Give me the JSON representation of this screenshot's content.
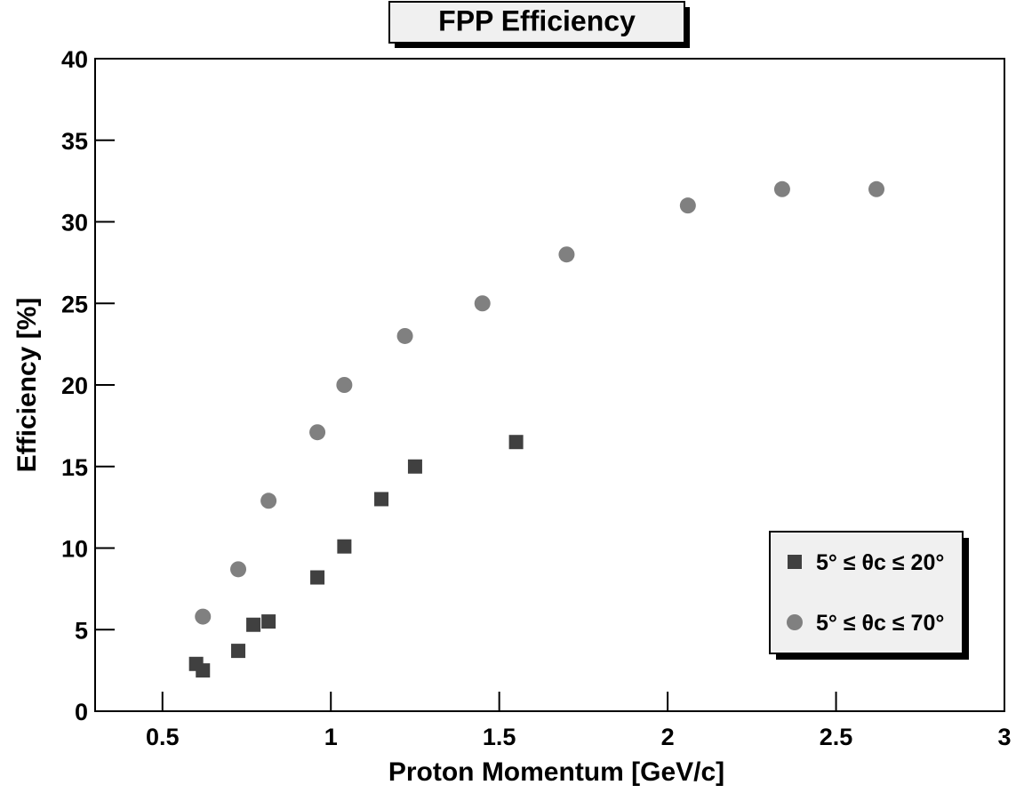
{
  "chart_data": {
    "type": "scatter",
    "title": "FPP Efficiency",
    "x_label": "Proton Momentum   [GeV/c]",
    "y_label": "Efficiency   [%]",
    "xlim": [
      0.3,
      3
    ],
    "ylim": [
      0,
      40
    ],
    "xticks": [
      0.5,
      1,
      1.5,
      2,
      2.5,
      3
    ],
    "yticks": [
      0,
      5,
      10,
      15,
      20,
      25,
      30,
      35,
      40
    ],
    "legend_position": "lower right",
    "series": [
      {
        "name": "5° ≤ θc ≤ 20°",
        "color": "#404040",
        "marker": "square",
        "x": [
          0.6,
          0.62,
          0.725,
          0.77,
          0.815,
          0.96,
          1.04,
          1.15,
          1.25,
          1.55
        ],
        "values": [
          2.9,
          2.5,
          3.7,
          5.3,
          5.5,
          8.2,
          10.1,
          13,
          15,
          16.5
        ]
      },
      {
        "name": "5° ≤ θc ≤ 70°",
        "color": "#808080",
        "marker": "circle",
        "x": [
          0.62,
          0.725,
          0.815,
          0.96,
          1.04,
          1.22,
          1.45,
          1.7,
          2.06,
          2.34,
          2.62
        ],
        "values": [
          5.8,
          8.7,
          12.9,
          17.1,
          20,
          23,
          25,
          28,
          31,
          32,
          32
        ]
      }
    ]
  }
}
